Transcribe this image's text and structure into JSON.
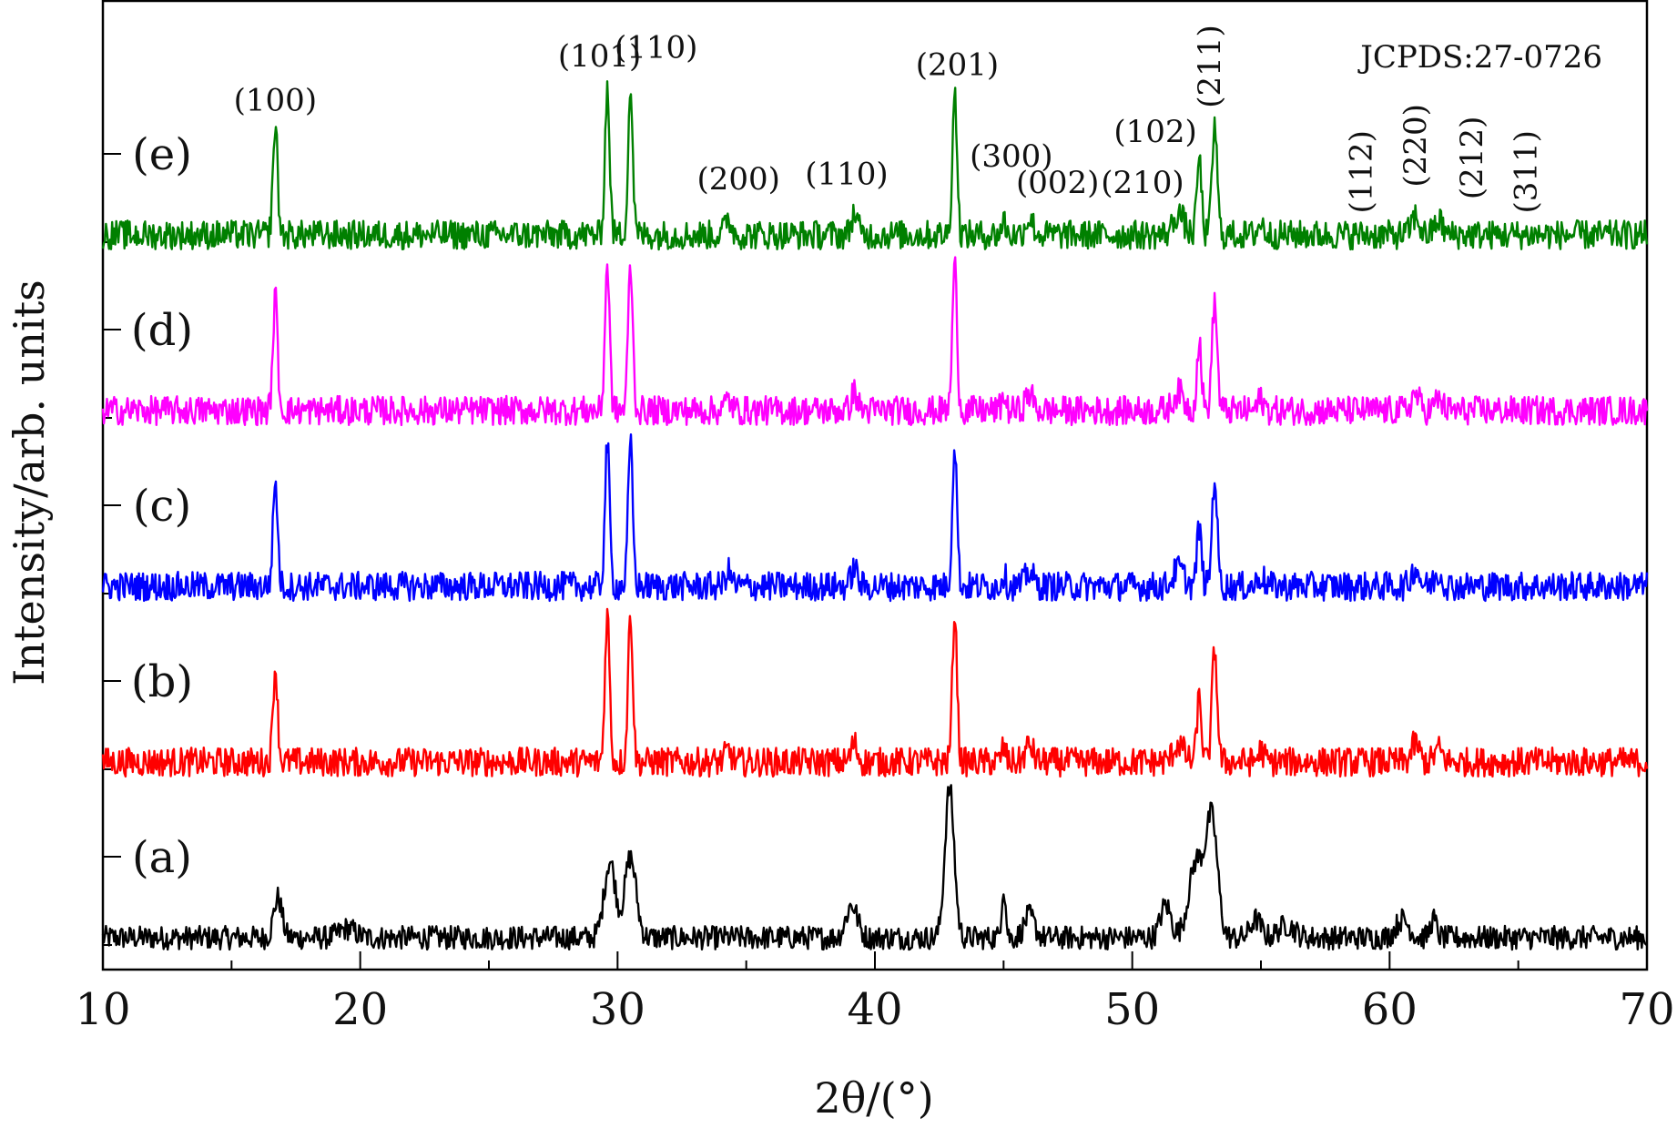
{
  "chart_data": {
    "type": "line",
    "title": "",
    "xlabel": "2θ/(°)",
    "ylabel": "Intensity/arb. units",
    "xlim": [
      10,
      70
    ],
    "x_ticks": [
      "10",
      "20",
      "30",
      "40",
      "50",
      "60",
      "70"
    ],
    "reference": "JCPDS:27-0726",
    "grid": false,
    "series": [
      {
        "name": "(a)",
        "color": "#000000",
        "offset": 0,
        "scale": 1.0,
        "peaks": [
          [
            16.8,
            0.22,
            0.16
          ],
          [
            19.5,
            0.05,
            0.3
          ],
          [
            29.7,
            0.42,
            0.22
          ],
          [
            30.5,
            0.44,
            0.22
          ],
          [
            39.1,
            0.18,
            0.22
          ],
          [
            42.9,
            0.82,
            0.18
          ],
          [
            45.0,
            0.28,
            0.08
          ],
          [
            46.0,
            0.12,
            0.2
          ],
          [
            51.3,
            0.18,
            0.2
          ],
          [
            52.5,
            0.42,
            0.3
          ],
          [
            53.1,
            0.62,
            0.22
          ],
          [
            54.8,
            0.1,
            0.2
          ],
          [
            56.0,
            0.07,
            0.3
          ],
          [
            60.5,
            0.1,
            0.25
          ],
          [
            61.7,
            0.1,
            0.12
          ]
        ]
      },
      {
        "name": "(b)",
        "color": "#ff0000",
        "offset": 1,
        "scale": 1.0,
        "peaks": [
          [
            16.7,
            0.52,
            0.09
          ],
          [
            29.6,
            0.82,
            0.09
          ],
          [
            30.5,
            0.82,
            0.09
          ],
          [
            34.3,
            0.06,
            0.12
          ],
          [
            39.2,
            0.1,
            0.12
          ],
          [
            43.1,
            0.82,
            0.09
          ],
          [
            45.0,
            0.08,
            0.08
          ],
          [
            46.0,
            0.09,
            0.15
          ],
          [
            51.8,
            0.1,
            0.2
          ],
          [
            52.6,
            0.35,
            0.09
          ],
          [
            53.2,
            0.62,
            0.1
          ],
          [
            55.0,
            0.06,
            0.12
          ],
          [
            61.0,
            0.1,
            0.15
          ],
          [
            61.9,
            0.07,
            0.15
          ]
        ]
      },
      {
        "name": "(c)",
        "color": "#0000ff",
        "offset": 2,
        "scale": 1.0,
        "peaks": [
          [
            16.7,
            0.58,
            0.09
          ],
          [
            29.6,
            0.78,
            0.09
          ],
          [
            30.5,
            0.78,
            0.09
          ],
          [
            34.3,
            0.08,
            0.12
          ],
          [
            39.2,
            0.1,
            0.12
          ],
          [
            43.1,
            0.78,
            0.09
          ],
          [
            45.0,
            0.07,
            0.08
          ],
          [
            46.0,
            0.08,
            0.15
          ],
          [
            51.8,
            0.1,
            0.2
          ],
          [
            52.6,
            0.32,
            0.09
          ],
          [
            53.2,
            0.6,
            0.1
          ],
          [
            55.0,
            0.06,
            0.12
          ],
          [
            61.0,
            0.1,
            0.15
          ],
          [
            61.9,
            0.07,
            0.15
          ]
        ]
      },
      {
        "name": "(d)",
        "color": "#ff00ff",
        "offset": 3,
        "scale": 1.0,
        "peaks": [
          [
            16.7,
            0.62,
            0.09
          ],
          [
            29.6,
            0.8,
            0.09
          ],
          [
            30.5,
            0.8,
            0.09
          ],
          [
            34.3,
            0.06,
            0.12
          ],
          [
            39.2,
            0.1,
            0.12
          ],
          [
            43.1,
            0.8,
            0.09
          ],
          [
            45.0,
            0.08,
            0.08
          ],
          [
            46.0,
            0.09,
            0.15
          ],
          [
            51.8,
            0.1,
            0.2
          ],
          [
            52.6,
            0.38,
            0.09
          ],
          [
            53.2,
            0.6,
            0.1
          ],
          [
            55.0,
            0.06,
            0.12
          ],
          [
            61.0,
            0.09,
            0.15
          ],
          [
            61.9,
            0.06,
            0.15
          ]
        ]
      },
      {
        "name": "(e)",
        "color": "#008000",
        "offset": 4,
        "scale": 1.0,
        "peaks": [
          [
            16.7,
            0.6,
            0.09
          ],
          [
            29.6,
            0.8,
            0.09
          ],
          [
            30.5,
            0.8,
            0.09
          ],
          [
            34.3,
            0.09,
            0.12
          ],
          [
            39.2,
            0.12,
            0.12
          ],
          [
            43.1,
            0.78,
            0.09
          ],
          [
            45.0,
            0.08,
            0.08
          ],
          [
            46.0,
            0.09,
            0.15
          ],
          [
            51.8,
            0.12,
            0.2
          ],
          [
            52.6,
            0.42,
            0.09
          ],
          [
            53.2,
            0.6,
            0.1
          ],
          [
            55.0,
            0.06,
            0.12
          ],
          [
            61.0,
            0.1,
            0.15
          ],
          [
            61.9,
            0.08,
            0.15
          ]
        ]
      }
    ],
    "annotations": [
      {
        "text": "(100)",
        "x": 16.7,
        "level": 4.75,
        "rotate": false
      },
      {
        "text": "(101)",
        "x": 29.3,
        "level": 5.0,
        "rotate": false
      },
      {
        "text": "(110)",
        "x": 31.5,
        "level": 5.05,
        "rotate": false
      },
      {
        "text": "(200)",
        "x": 34.7,
        "level": 4.3,
        "rotate": false
      },
      {
        "text": "(110)",
        "x": 38.9,
        "level": 4.33,
        "rotate": false
      },
      {
        "text": "(201)",
        "x": 43.2,
        "level": 4.95,
        "rotate": false
      },
      {
        "text": "(300)",
        "x": 45.3,
        "level": 4.43,
        "rotate": false
      },
      {
        "text": "(002)",
        "x": 47.1,
        "level": 4.28,
        "rotate": false
      },
      {
        "text": "(210)",
        "x": 50.4,
        "level": 4.28,
        "rotate": false
      },
      {
        "text": "(102)",
        "x": 50.9,
        "level": 4.57,
        "rotate": false
      },
      {
        "text": "(211)",
        "x": 53.4,
        "level": 5.0,
        "rotate": true
      },
      {
        "text": "(112)",
        "x": 59.3,
        "level": 4.4,
        "rotate": true
      },
      {
        "text": "(220)",
        "x": 61.4,
        "level": 4.55,
        "rotate": true
      },
      {
        "text": "(212)",
        "x": 63.6,
        "level": 4.48,
        "rotate": true
      },
      {
        "text": "(311)",
        "x": 65.7,
        "level": 4.4,
        "rotate": true
      }
    ]
  }
}
